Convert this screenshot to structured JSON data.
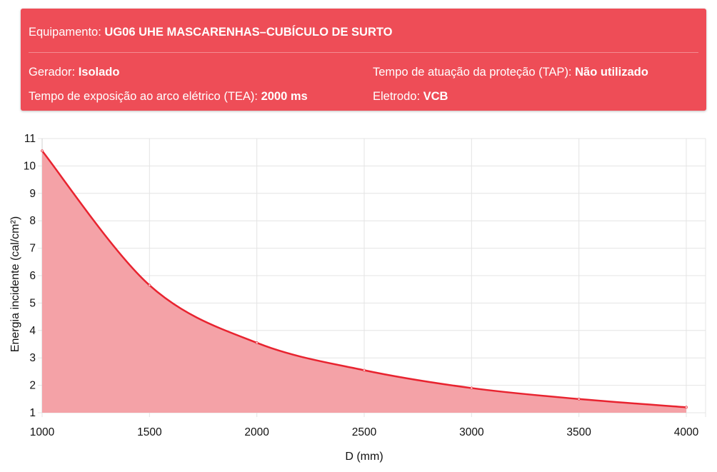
{
  "info": {
    "equipment_label": "Equipamento: ",
    "equipment_value": "UG06 UHE MASCARENHAS–CUBÍCULO DE SURTO",
    "generator_label": "Gerador: ",
    "generator_value": "Isolado",
    "tea_label": "Tempo de exposição ao arco elétrico (TEA): ",
    "tea_value": "2000 ms",
    "tap_label": "Tempo de atuação da proteção (TAP): ",
    "tap_value": "Não utilizado",
    "electrode_label": "Eletrodo: ",
    "electrode_value": "VCB",
    "card_color": "#ee4d57"
  },
  "chart_data": {
    "type": "area",
    "xlabel": "D (mm)",
    "ylabel": "Energia incidente (cal/cm²)",
    "xlim": [
      1000,
      4000
    ],
    "ylim": [
      1,
      11
    ],
    "x_ticks": [
      "1000",
      "1500",
      "2000",
      "2500",
      "3000",
      "3500",
      "4000"
    ],
    "y_ticks": [
      "1",
      "2",
      "3",
      "4",
      "5",
      "6",
      "7",
      "8",
      "9",
      "10",
      "11"
    ],
    "grid": true,
    "series": [
      {
        "color": "#e8232f",
        "fill": "#f4a2a7",
        "x": [
          1000,
          1500,
          2000,
          2500,
          3000,
          3500,
          4000
        ],
        "y": [
          10.55,
          5.65,
          3.55,
          2.55,
          1.9,
          1.5,
          1.2
        ]
      }
    ]
  }
}
